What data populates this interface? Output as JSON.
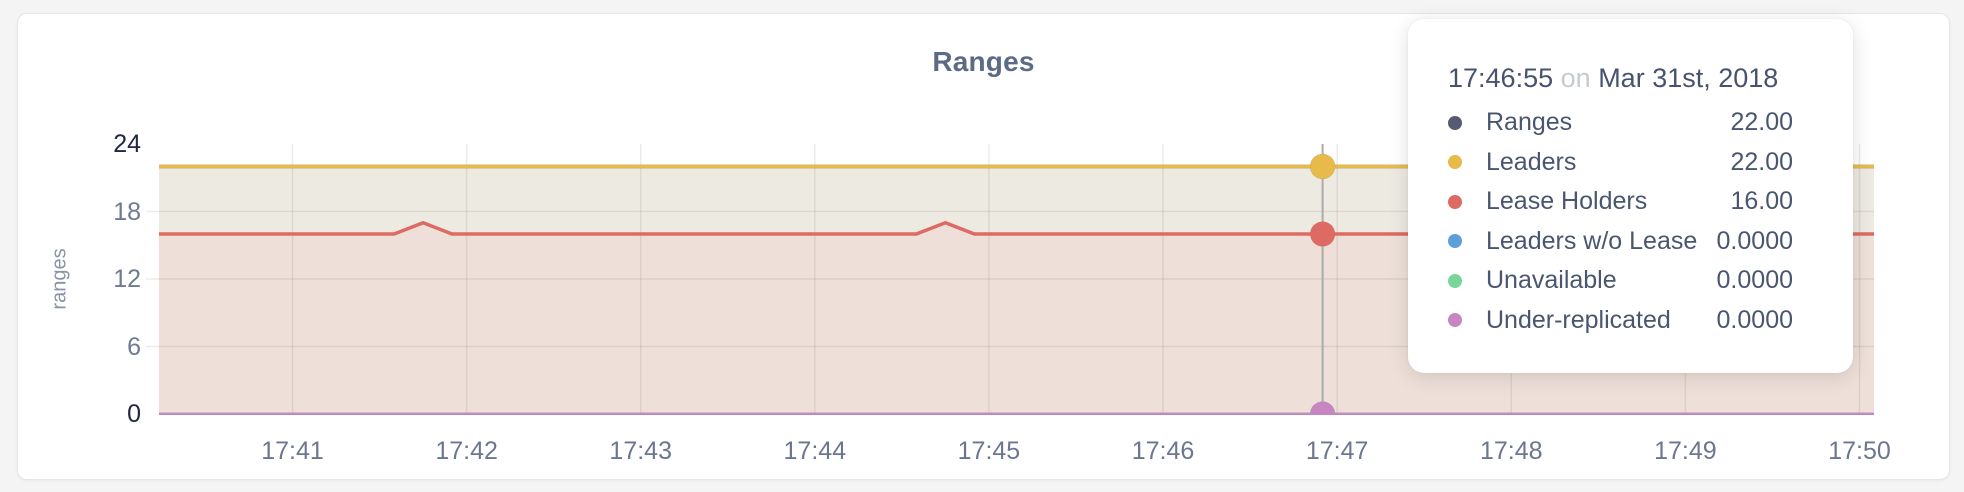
{
  "page": {
    "background": "#f4f4f5"
  },
  "card": {
    "background": "#ffffff",
    "border_color": "#e6e6e7"
  },
  "chart_data": {
    "type": "area",
    "title": "Ranges",
    "ylabel": "ranges",
    "xlabel": "",
    "grid": true,
    "legend_position": "none",
    "ylim": [
      0,
      24
    ],
    "y_ticks": [
      0,
      6,
      12,
      18,
      24
    ],
    "y_gridlines": [
      6,
      12,
      18
    ],
    "x_start": "17:40:14",
    "x_end": "17:50:05",
    "x_ticks": [
      "17:41",
      "17:42",
      "17:43",
      "17:44",
      "17:45",
      "17:46",
      "17:47",
      "17:48",
      "17:49",
      "17:50"
    ],
    "series": [
      {
        "name": "Ranges",
        "color": "#565b71",
        "fill": "none",
        "points": [
          [
            "17:40:14",
            22
          ],
          [
            "17:50:05",
            22
          ]
        ]
      },
      {
        "name": "Leaders",
        "color": "#e7ba49",
        "fill": "#edeae2",
        "points": [
          [
            "17:40:14",
            22
          ],
          [
            "17:50:05",
            22
          ]
        ]
      },
      {
        "name": "Lease Holders",
        "color": "#dd6a63",
        "fill": "#eee0d9",
        "points": [
          [
            "17:40:14",
            16
          ],
          [
            "17:41:35",
            16
          ],
          [
            "17:41:45",
            17
          ],
          [
            "17:41:55",
            16
          ],
          [
            "17:44:35",
            16
          ],
          [
            "17:44:45",
            17
          ],
          [
            "17:44:55",
            16
          ],
          [
            "17:50:05",
            16
          ]
        ]
      },
      {
        "name": "Leaders w/o Lease",
        "color": "#5da0d9",
        "fill": "none",
        "points": [
          [
            "17:40:14",
            0
          ],
          [
            "17:50:05",
            0
          ]
        ]
      },
      {
        "name": "Unavailable",
        "color": "#78d69b",
        "fill": "none",
        "points": [
          [
            "17:40:14",
            0
          ],
          [
            "17:50:05",
            0
          ]
        ]
      },
      {
        "name": "Under-replicated",
        "color": "#c786bf",
        "fill": "none",
        "points": [
          [
            "17:40:14",
            0
          ],
          [
            "17:50:05",
            0
          ]
        ]
      }
    ],
    "hover_line_color": "#ababab",
    "gridline_color": "rgba(85,75,65,0.11)"
  },
  "tooltip": {
    "time": "17:46:55",
    "on_word": "on",
    "date": "Mar 31st, 2018",
    "rows": [
      {
        "label": "Ranges",
        "value": "22.00"
      },
      {
        "label": "Leaders",
        "value": "22.00"
      },
      {
        "label": "Lease Holders",
        "value": "16.00"
      },
      {
        "label": "Leaders w/o Lease",
        "value": "0.0000"
      },
      {
        "label": "Unavailable",
        "value": "0.0000"
      },
      {
        "label": "Under-replicated",
        "value": "0.0000"
      }
    ]
  }
}
